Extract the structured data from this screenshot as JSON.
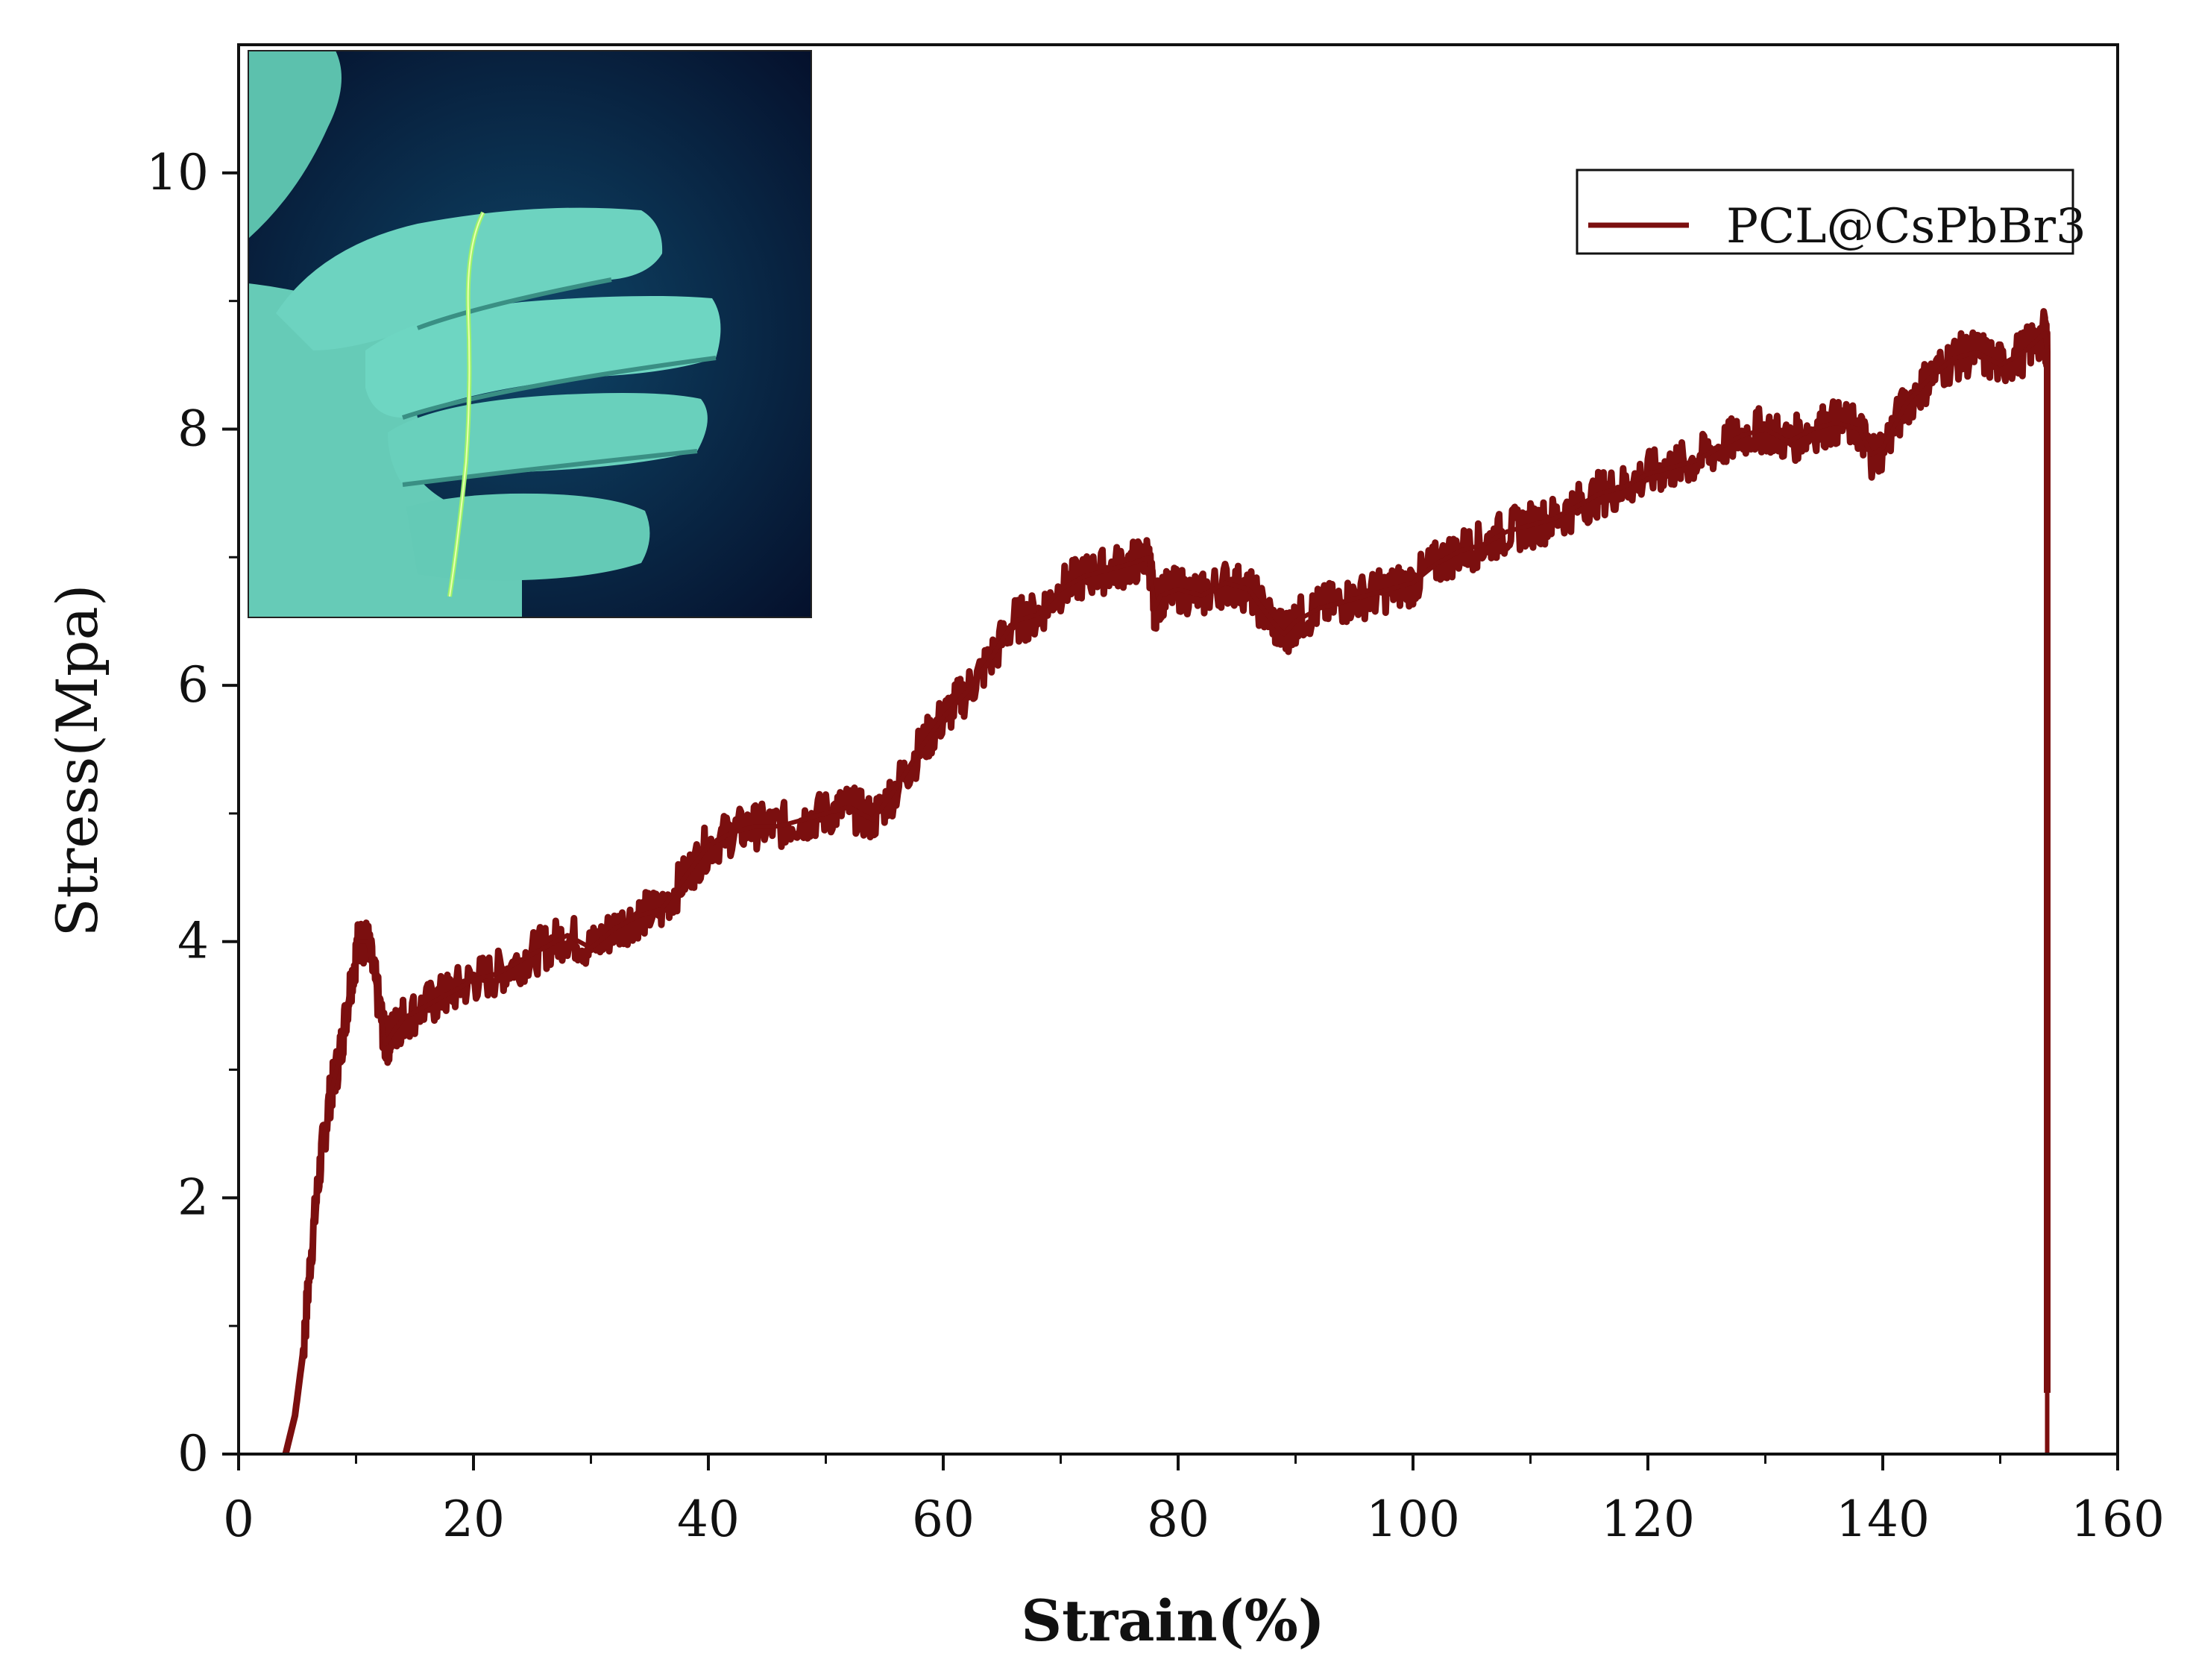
{
  "chart_data": {
    "type": "line",
    "xlabel": "Strain(%)",
    "ylabel": "Stress(Mpa)",
    "xlim": [
      0,
      160
    ],
    "ylim": [
      0,
      11
    ],
    "x_ticks": [
      "0",
      "20",
      "40",
      "60",
      "80",
      "100",
      "120",
      "140",
      "160"
    ],
    "y_ticks": [
      "0",
      "2",
      "4",
      "6",
      "8",
      "10"
    ],
    "grid": false,
    "legend_position": "top-right",
    "inset": "photo of a gloved hand holding a thin glowing green fiber under UV light",
    "series": [
      {
        "name": "PCL@CsPbBr3",
        "color": "#7b0f0f",
        "x": [
          4,
          4.8,
          5.5,
          6.2,
          7,
          7.8,
          8.6,
          9.4,
          10.2,
          11,
          11.8,
          12.5,
          13.2,
          14,
          16,
          18,
          20,
          22,
          24,
          26,
          28,
          30,
          32,
          34,
          36,
          38,
          40,
          42,
          44,
          46,
          48,
          50,
          52,
          54,
          56,
          58,
          60,
          62,
          64,
          66,
          68,
          70,
          72,
          74,
          76,
          77.5,
          78,
          78.5,
          80,
          82,
          84,
          86,
          88,
          89,
          90,
          92,
          94,
          96,
          98,
          100,
          102,
          104,
          106,
          108,
          110,
          112,
          114,
          116,
          118,
          120,
          122,
          124,
          126,
          128,
          130,
          132,
          134,
          136,
          138,
          139,
          140,
          142,
          144,
          146,
          148,
          150,
          152,
          153.8,
          154,
          154
        ],
        "y": [
          0,
          0.3,
          0.8,
          1.6,
          2.3,
          2.8,
          3.1,
          3.6,
          4.0,
          4.0,
          3.6,
          3.2,
          3.3,
          3.4,
          3.5,
          3.6,
          3.7,
          3.75,
          3.85,
          3.95,
          4.05,
          3.95,
          4.1,
          4.2,
          4.25,
          4.5,
          4.75,
          4.85,
          4.9,
          4.9,
          4.95,
          5.0,
          5.05,
          4.95,
          5.2,
          5.5,
          5.75,
          5.95,
          6.2,
          6.5,
          6.55,
          6.75,
          6.85,
          6.9,
          6.95,
          7.0,
          6.6,
          6.7,
          6.75,
          6.7,
          6.8,
          6.75,
          6.5,
          6.4,
          6.5,
          6.6,
          6.65,
          6.7,
          6.75,
          6.8,
          6.95,
          7.05,
          7.1,
          7.2,
          7.25,
          7.3,
          7.4,
          7.5,
          7.55,
          7.65,
          7.7,
          7.75,
          7.85,
          7.95,
          8.0,
          7.9,
          8.0,
          8.05,
          8.0,
          7.8,
          7.85,
          8.2,
          8.4,
          8.55,
          8.6,
          8.5,
          8.6,
          8.75,
          8.6,
          0
        ]
      }
    ]
  }
}
